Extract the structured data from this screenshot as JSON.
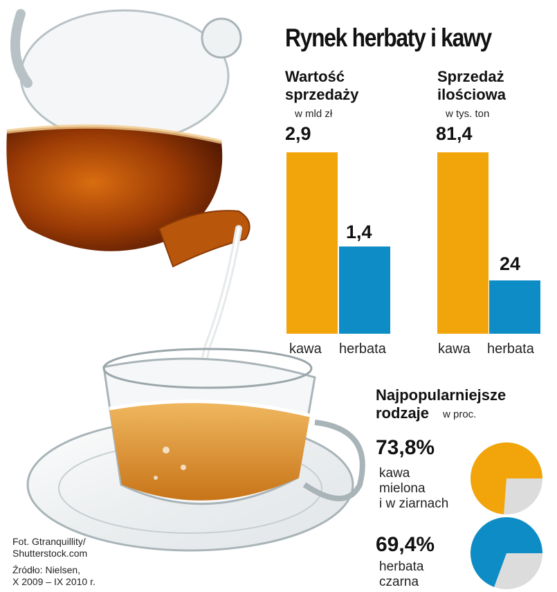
{
  "title": "Rynek herbaty i kawy",
  "colors": {
    "kawa": "#F2A50A",
    "herbata": "#0E8CC6",
    "rest": "#DCDCDC"
  },
  "chart_data": [
    {
      "type": "bar",
      "title": "Wartość\nsprzedaży",
      "unit": "w mld zł",
      "categories": [
        "kawa",
        "herbata"
      ],
      "values": [
        2.9,
        1.4
      ],
      "value_labels": [
        "2,9",
        "1,4"
      ]
    },
    {
      "type": "bar",
      "title": "Sprzedaż\nilościowa",
      "unit": "w tys. ton",
      "categories": [
        "kawa",
        "herbata"
      ],
      "values": [
        81.4,
        24
      ],
      "value_labels": [
        "81,4",
        "24"
      ]
    },
    {
      "type": "pie",
      "title": "Najpopularniejsze",
      "title2": "rodzaje",
      "unit": "w proc.",
      "items": [
        {
          "label": "kawa\nmielona\ni w ziarnach",
          "value": 73.8,
          "value_label": "73,8%",
          "color_key": "kawa"
        },
        {
          "label": "herbata\nczarna",
          "value": 69.4,
          "value_label": "69,4%",
          "color_key": "herbata"
        }
      ]
    }
  ],
  "credits": {
    "photo": "Fot. Gtranquillity/\nShutterstock.com",
    "source": "Źródło: Nielsen,\nX 2009 – IX 2010 r."
  }
}
